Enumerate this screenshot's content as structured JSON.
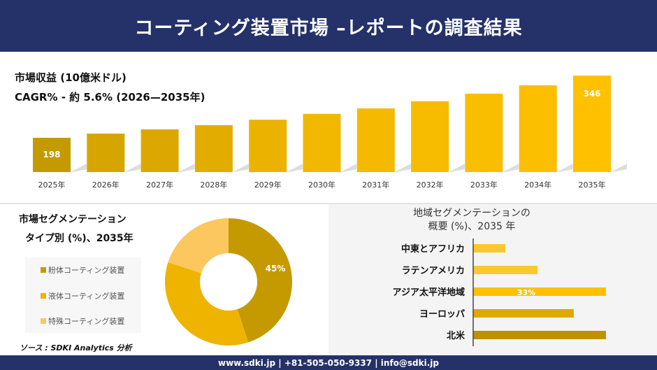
{
  "header": {
    "title": "コーティング装置市場 –レポートの調査結果"
  },
  "revenue": {
    "title": "市場収益 (10億米ドル)",
    "cagr": "CAGR% - 約 5.6% (2026—2035年)"
  },
  "type_segment": {
    "title_line1": "市場セグメンテーション",
    "title_line2": "タイプ別 (%)、2035年"
  },
  "region_segment": {
    "title_line1": "地域セグメンテーションの",
    "title_line2": "概要 (%)、2035 年"
  },
  "source": "ソース : SDKI Analytics 分析",
  "footer": {
    "contact": "www.sdki.jp | +81-505-050-9337 | info@sdki.jp"
  },
  "chart_data": [
    {
      "type": "bar",
      "categories": [
        "2025年",
        "2026年",
        "2027年",
        "2028年",
        "2029年",
        "2030年",
        "2031年",
        "2032年",
        "2033年",
        "2034年",
        "2035年"
      ],
      "values": [
        198,
        208,
        218,
        228,
        241,
        255,
        268,
        285,
        303,
        323,
        346
      ],
      "data_labels": {
        "0": "198",
        "10": "346"
      },
      "colors": [
        "#c49a00",
        "#d6a500",
        "#dca800",
        "#e3ad00",
        "#ebb300",
        "#f2b800",
        "#f5ba00",
        "#f7bc00",
        "#fabe00",
        "#fcbf00",
        "#ffc000"
      ]
    },
    {
      "type": "pie",
      "donut": true,
      "labels": [
        "粉体コーティング装置",
        "液体コーティング装置",
        "特殊コーティング装置"
      ],
      "values": [
        45,
        35,
        20
      ],
      "data_labels": {
        "0": "45%"
      },
      "colors": [
        "#c49a00",
        "#eeb400",
        "#fdc75f"
      ]
    },
    {
      "type": "bar",
      "orientation": "horizontal",
      "categories": [
        "中東とアフリカ",
        "ラテンアメリカ",
        "アジア太平洋地域",
        "ヨーロッパ",
        "北米"
      ],
      "values": [
        8,
        16,
        33,
        25,
        33
      ],
      "data_labels": {
        "2": "33%"
      },
      "colors": [
        "#fdc72f",
        "#fdc72f",
        "#ffc000",
        "#e0a800",
        "#c09000"
      ]
    }
  ]
}
